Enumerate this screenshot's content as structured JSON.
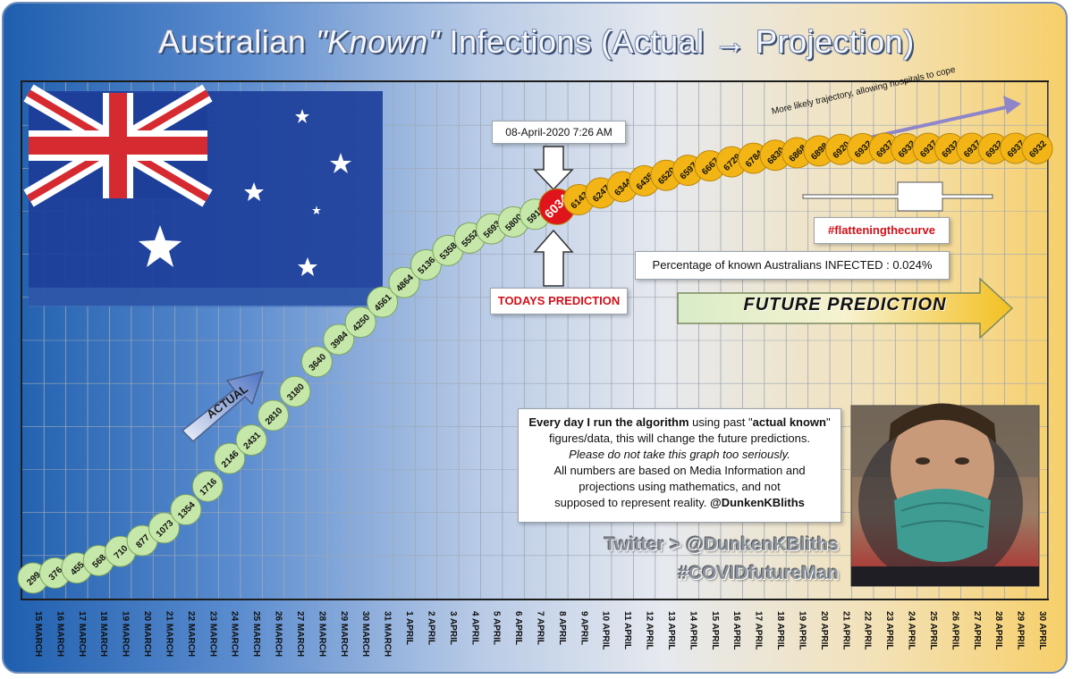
{
  "title": {
    "prefix": "Australian ",
    "emph": "\"Known\"",
    "suffix": " Infections (Actual → Projection)"
  },
  "colors": {
    "actual_bubble": "#c5e7a9",
    "projection_bubble": "#f3b516",
    "today_bubble": "#e0141b",
    "grid": "#9ea8b4"
  },
  "chart_data": {
    "type": "line",
    "title": "Australian \"Known\" Infections (Actual → Projection)",
    "categories": [
      "15 MARCH",
      "16 MARCH",
      "17 MARCH",
      "18 MARCH",
      "19 MARCH",
      "20 MARCH",
      "21 MARCH",
      "22 MARCH",
      "23 MARCH",
      "24 MARCH",
      "25 MARCH",
      "26 MARCH",
      "27 MARCH",
      "28 MARCH",
      "29 MARCH",
      "30 MARCH",
      "31 MARCH",
      "1 APRIL",
      "2 APRIL",
      "3 APRIL",
      "4 APRIL",
      "5 APRIL",
      "6 APRIL",
      "7 APRIL",
      "8 APRIL",
      "9 APRIL",
      "10 APRIL",
      "11 APRIL",
      "12 APRIL",
      "13 APRIL",
      "14 APRIL",
      "15 APRIL",
      "16 APRIL",
      "17 APRIL",
      "18 APRIL",
      "19 APRIL",
      "20 APRIL",
      "21 APRIL",
      "22 APRIL",
      "23 APRIL",
      "24 APRIL",
      "25 APRIL",
      "26 APRIL",
      "27 APRIL",
      "28 APRIL",
      "29 APRIL",
      "30 APRIL"
    ],
    "series": [
      {
        "name": "Actual",
        "values": [
          299,
          376,
          455,
          568,
          710,
          877,
          1073,
          1354,
          1716,
          2146,
          2431,
          2810,
          3180,
          3640,
          3984,
          4250,
          4561,
          4864,
          5136,
          5358,
          5552,
          5693,
          5800,
          5919,
          null,
          null,
          null,
          null,
          null,
          null,
          null,
          null,
          null,
          null,
          null,
          null,
          null,
          null,
          null,
          null,
          null,
          null,
          null,
          null,
          null,
          null,
          null
        ]
      },
      {
        "name": "Today",
        "values": [
          null,
          null,
          null,
          null,
          null,
          null,
          null,
          null,
          null,
          null,
          null,
          null,
          null,
          null,
          null,
          null,
          null,
          null,
          null,
          null,
          null,
          null,
          null,
          null,
          6034,
          null,
          null,
          null,
          null,
          null,
          null,
          null,
          null,
          null,
          null,
          null,
          null,
          null,
          null,
          null,
          null,
          null,
          null,
          null,
          null,
          null,
          null
        ]
      },
      {
        "name": "Projection",
        "values": [
          null,
          null,
          null,
          null,
          null,
          null,
          null,
          null,
          null,
          null,
          null,
          null,
          null,
          null,
          null,
          null,
          null,
          null,
          null,
          null,
          null,
          null,
          null,
          null,
          null,
          6143,
          6247,
          6344,
          6435,
          6520,
          6597,
          6667,
          6729,
          6784,
          6830,
          6868,
          6898,
          6920,
          6932,
          6937,
          6932,
          6937,
          6932,
          6937,
          6932,
          6937,
          6932
        ]
      }
    ],
    "annotations": {
      "date_stamp": "08-April-2020  7:26 AM",
      "today_label": "TODAYS PREDICTION",
      "flattening": "#flatteningthecurve",
      "percentage": "Percentage of known Australians INFECTED : 0.024%",
      "trajectory": "More likely trajectory, allowing hospitals to cope",
      "future": "FUTURE PREDICTION",
      "actual": "ACTUAL"
    },
    "grid": true
  },
  "info": {
    "l1_bold": "Every day I run the algorithm",
    "l1_mid": " using past \"",
    "l1_bold2": "actual known",
    "l1_end": "\"",
    "l2": "figures/data, this will change the future predictions.",
    "l3": "Please do not take this graph too seriously.",
    "l4": "All numbers are based on Media Information and",
    "l5": "projections using  mathematics, and not",
    "l6": "supposed to represent reality. ",
    "l6_handle": "@DunkenKBliths"
  },
  "social": {
    "twitter": "Twitter > @DunkenKBliths",
    "hashtag": "#COVIDfutureMan"
  },
  "icons": {
    "flag": "australian-flag",
    "portrait": "masked-man-photo"
  }
}
